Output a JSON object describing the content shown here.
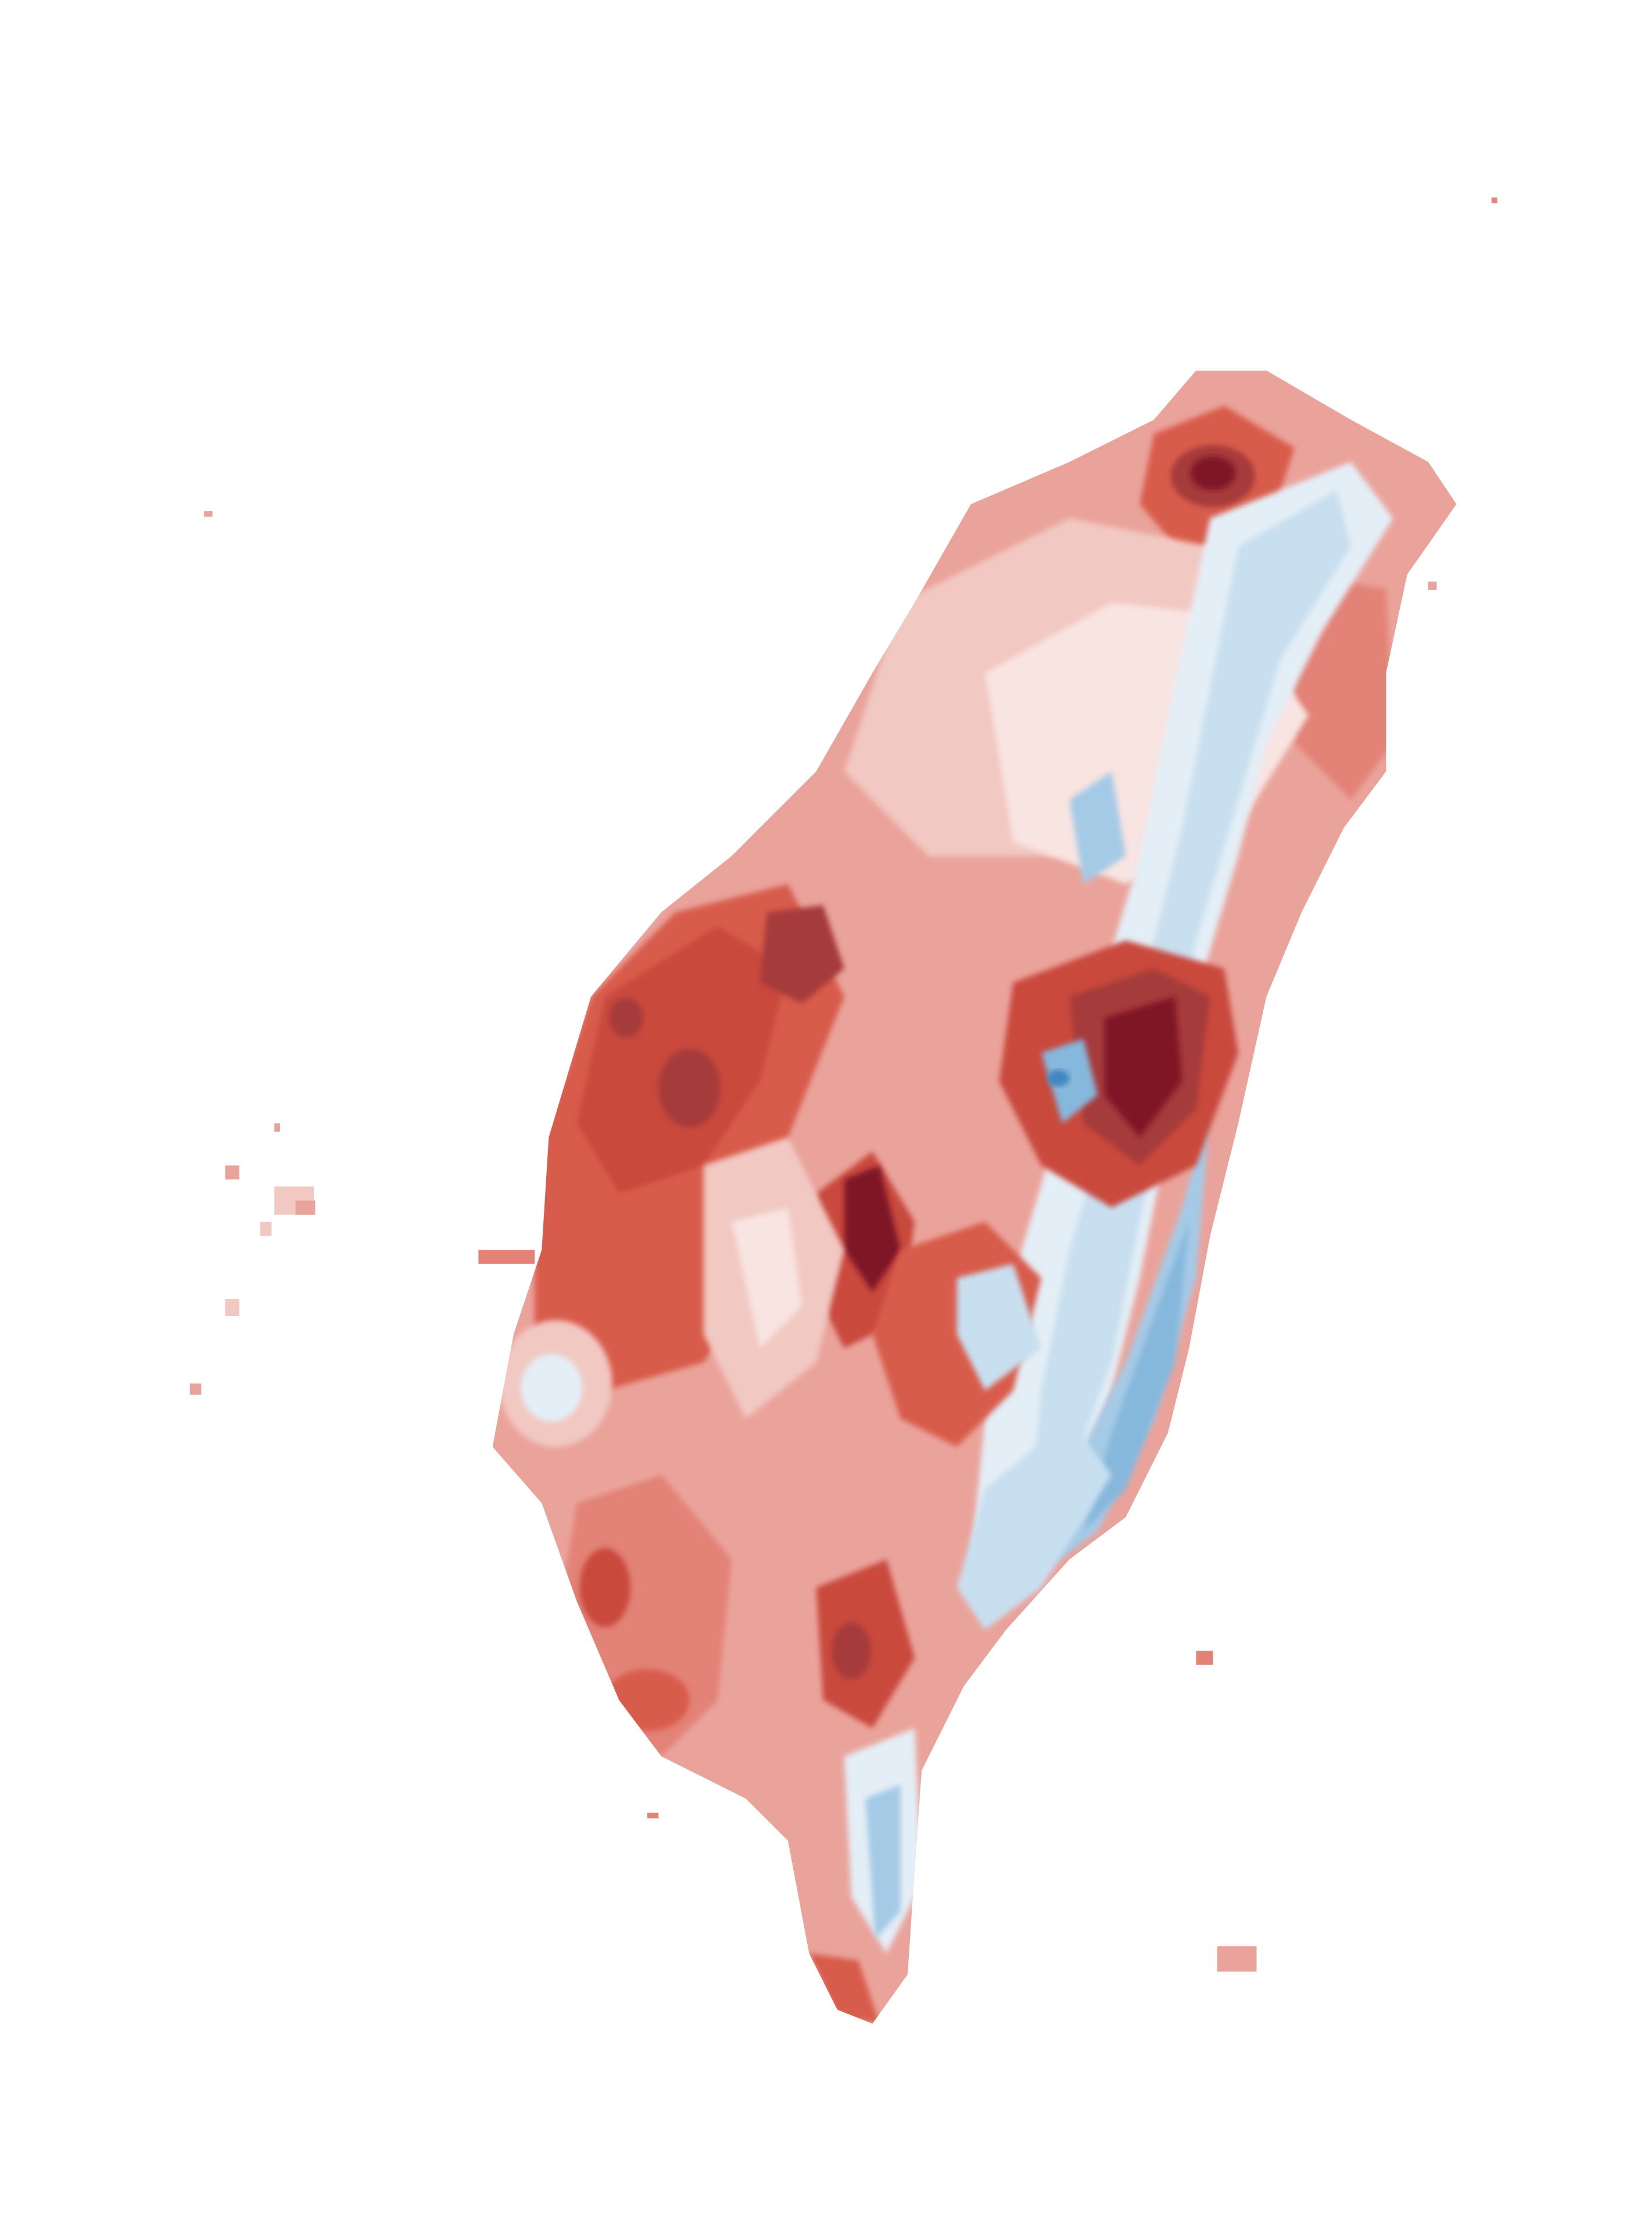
{
  "map": {
    "type": "filled-contour",
    "region": "Taiwan",
    "labels_shown": false,
    "legend_shown": false,
    "palette": {
      "c_ext_neg": "#7f1325",
      "c_neg5": "#a63a3a",
      "c_neg4": "#c9483e",
      "c_neg3": "#d85c4c",
      "c_neg2": "#e38277",
      "c_neg1": "#eaa39b",
      "c_neg0": "#f2c8c2",
      "c_zero": "#f8e4e1",
      "c_pos0": "#e4eef6",
      "c_pos1": "#c8dff0",
      "c_pos2": "#a5cae6",
      "c_pos3": "#86b7dc",
      "c_ext_pos": "#3f86c0"
    }
  }
}
